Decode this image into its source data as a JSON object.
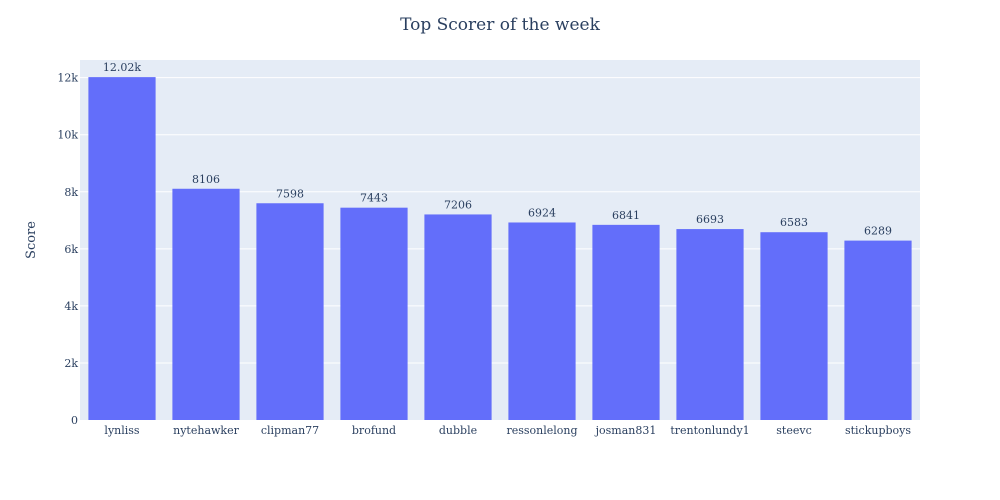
{
  "chart_data": {
    "type": "bar",
    "title": "Top Scorer of the week",
    "xlabel": "",
    "ylabel": "Score",
    "categories": [
      "lynliss",
      "nytehawker",
      "clipman77",
      "brofund",
      "dubble",
      "ressonlelong",
      "josman831",
      "trentonlundy1",
      "steevc",
      "stickupboys"
    ],
    "values": [
      12020,
      8106,
      7598,
      7443,
      7206,
      6924,
      6841,
      6693,
      6583,
      6289
    ],
    "value_labels": [
      "12.02k",
      "8106",
      "7598",
      "7443",
      "7206",
      "6924",
      "6841",
      "6693",
      "6583",
      "6289"
    ],
    "ylim": [
      0,
      12620
    ],
    "yticks": [
      0,
      2000,
      4000,
      6000,
      8000,
      10000,
      12000
    ],
    "ytick_labels": [
      "0",
      "2k",
      "4k",
      "6k",
      "8k",
      "10k",
      "12k"
    ],
    "grid": true,
    "colors": {
      "bar": "#636efa",
      "plot_bg": "#e5ecf6",
      "grid": "#ffffff",
      "text": "#2a3f5f"
    }
  }
}
